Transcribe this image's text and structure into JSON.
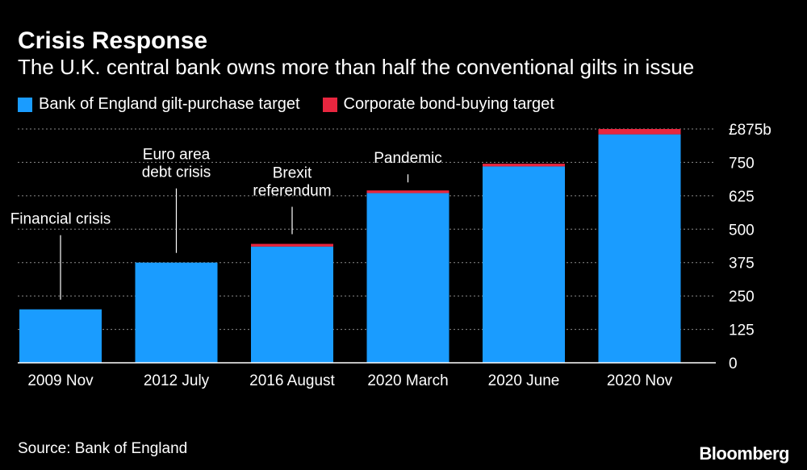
{
  "title": "Crisis Response",
  "subtitle": "The U.K. central bank owns more than half the conventional gilts in issue",
  "source": "Source: Bank of England",
  "brand": "Bloomberg",
  "colors": {
    "boe": "#1a9cff",
    "corp": "#e8263f",
    "grid": "#ffffff",
    "background": "#000000"
  },
  "chart_data": {
    "type": "bar",
    "stacked": true,
    "categories": [
      "2009 Nov",
      "2012 July",
      "2016 August",
      "2020 March",
      "2020 June",
      "2020 Nov"
    ],
    "series": [
      {
        "name": "Bank of England gilt-purchase target",
        "values": [
          200,
          375,
          435,
          635,
          735,
          855
        ]
      },
      {
        "name": "Corporate bond-buying target",
        "values": [
          0,
          0,
          10,
          10,
          10,
          20
        ]
      }
    ],
    "ylim": [
      0,
      875
    ],
    "yticks": [
      0,
      125,
      250,
      375,
      500,
      625,
      750,
      875
    ],
    "ytick_labels": [
      "0",
      "125",
      "250",
      "375",
      "500",
      "625",
      "750",
      "£875b"
    ],
    "grid": true,
    "legend_position": "top-left",
    "annotations": [
      {
        "category": "2009 Nov",
        "lines": [
          "Financial crisis"
        ]
      },
      {
        "category": "2012 July",
        "lines": [
          "Euro area",
          "debt crisis"
        ]
      },
      {
        "category": "2016 August",
        "lines": [
          "Brexit",
          "referendum"
        ]
      },
      {
        "category": "2020 March",
        "lines": [
          "Pandemic"
        ]
      }
    ]
  }
}
